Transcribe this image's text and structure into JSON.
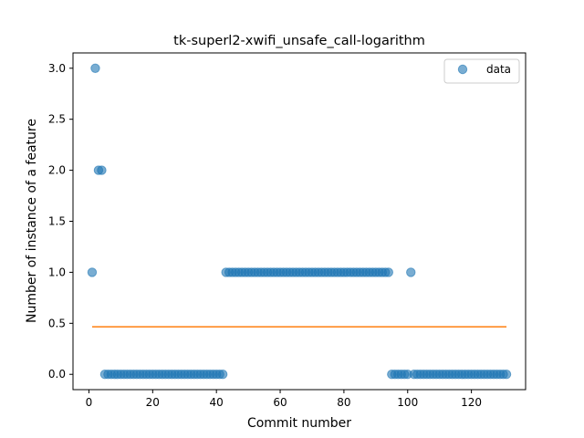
{
  "chart_data": {
    "type": "scatter",
    "title": "tk-superl2-xwifi_unsafe_call-logarithm",
    "xlabel": "Commit number",
    "ylabel": "Number of instance of a feature",
    "xlim": [
      -5,
      137
    ],
    "ylim": [
      -0.15,
      3.15
    ],
    "xticks": [
      0,
      20,
      40,
      60,
      80,
      100,
      120
    ],
    "yticks": [
      0.0,
      0.5,
      1.0,
      1.5,
      2.0,
      2.5,
      3.0
    ],
    "xtick_labels": [
      "0",
      "20",
      "40",
      "60",
      "80",
      "100",
      "120"
    ],
    "ytick_labels": [
      "0.0",
      "0.5",
      "1.0",
      "1.5",
      "2.0",
      "2.5",
      "3.0"
    ],
    "grid": false,
    "legend": {
      "position": "top-right",
      "entries": [
        "data"
      ]
    },
    "series": [
      {
        "name": "data",
        "kind": "scatter",
        "color": "#1f77b4",
        "x": [
          1,
          2,
          3,
          4,
          5,
          6,
          7,
          8,
          9,
          10,
          11,
          12,
          13,
          14,
          15,
          16,
          17,
          18,
          19,
          20,
          21,
          22,
          23,
          24,
          25,
          26,
          27,
          28,
          29,
          30,
          31,
          32,
          33,
          34,
          35,
          36,
          37,
          38,
          39,
          40,
          41,
          42,
          43,
          44,
          45,
          46,
          47,
          48,
          49,
          50,
          51,
          52,
          53,
          54,
          55,
          56,
          57,
          58,
          59,
          60,
          61,
          62,
          63,
          64,
          65,
          66,
          67,
          68,
          69,
          70,
          71,
          72,
          73,
          74,
          75,
          76,
          77,
          78,
          79,
          80,
          81,
          82,
          83,
          84,
          85,
          86,
          87,
          88,
          89,
          90,
          91,
          92,
          93,
          94,
          95,
          96,
          97,
          98,
          99,
          100,
          101,
          102,
          103,
          104,
          105,
          106,
          107,
          108,
          109,
          110,
          111,
          112,
          113,
          114,
          115,
          116,
          117,
          118,
          119,
          120,
          121,
          122,
          123,
          124,
          125,
          126,
          127,
          128,
          129,
          130,
          131
        ],
        "y": [
          1,
          3,
          2,
          2,
          0,
          0,
          0,
          0,
          0,
          0,
          0,
          0,
          0,
          0,
          0,
          0,
          0,
          0,
          0,
          0,
          0,
          0,
          0,
          0,
          0,
          0,
          0,
          0,
          0,
          0,
          0,
          0,
          0,
          0,
          0,
          0,
          0,
          0,
          0,
          0,
          0,
          0,
          1,
          1,
          1,
          1,
          1,
          1,
          1,
          1,
          1,
          1,
          1,
          1,
          1,
          1,
          1,
          1,
          1,
          1,
          1,
          1,
          1,
          1,
          1,
          1,
          1,
          1,
          1,
          1,
          1,
          1,
          1,
          1,
          1,
          1,
          1,
          1,
          1,
          1,
          1,
          1,
          1,
          1,
          1,
          1,
          1,
          1,
          1,
          1,
          1,
          1,
          1,
          1,
          0,
          0,
          0,
          0,
          0,
          0,
          1,
          0,
          0,
          0,
          0,
          0,
          0,
          0,
          0,
          0,
          0,
          0,
          0,
          0,
          0,
          0,
          0,
          0,
          0,
          0,
          0,
          0,
          0,
          0,
          0,
          0,
          0,
          0,
          0,
          0,
          0
        ]
      },
      {
        "kind": "line",
        "color": "#ff7f0e",
        "x": [
          1,
          131
        ],
        "y": [
          0.466,
          0.466
        ]
      }
    ]
  }
}
